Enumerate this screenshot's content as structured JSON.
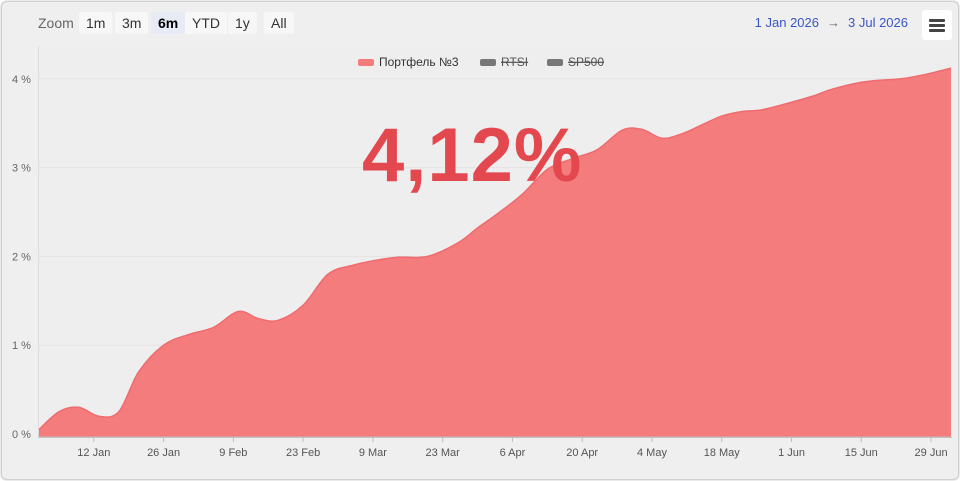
{
  "toolbar": {
    "zoom_label": "Zoom",
    "zoom_buttons": [
      "1m",
      "3m",
      "6m",
      "YTD",
      "1y",
      "All"
    ],
    "active_zoom": "6m",
    "range_from": "1 Jan 2026",
    "range_arrow": "→",
    "range_to": "3 Jul 2026",
    "menu_icon": "hamburger-menu-icon"
  },
  "headline_value": "4,12%",
  "colors": {
    "series": "#f47c7c",
    "series_stroke": "#ef6b6f",
    "headline": "#e4484f",
    "range_link": "#3a55c4"
  },
  "chart_data": {
    "type": "area",
    "title": "",
    "xlabel": "",
    "ylabel": "",
    "ylim": [
      0,
      4.2
    ],
    "yticks": [
      "0 %",
      "1 %",
      "2 %",
      "3 %",
      "4 %"
    ],
    "ytick_values": [
      0,
      1,
      2,
      3,
      4
    ],
    "xticks": [
      "12 Jan",
      "26 Jan",
      "9 Feb",
      "23 Feb",
      "9 Mar",
      "23 Mar",
      "6 Apr",
      "20 Apr",
      "4 May",
      "18 May",
      "1 Jun",
      "15 Jun",
      "29 Jun"
    ],
    "xtick_days": [
      11,
      25,
      39,
      53,
      67,
      81,
      95,
      109,
      123,
      137,
      151,
      165,
      179
    ],
    "x_start_day": 0,
    "x_end_day": 183,
    "grid": true,
    "legend_placement": "top-center",
    "legend": [
      {
        "name": "Портфель №3",
        "visible": true
      },
      {
        "name": "RTSI",
        "visible": false
      },
      {
        "name": "SP500",
        "visible": false
      }
    ],
    "series": [
      {
        "name": "Портфель №3",
        "x_days": [
          0,
          4,
          8,
          12,
          16,
          20,
          25,
          30,
          35,
          40,
          44,
          48,
          53,
          58,
          63,
          67,
          72,
          78,
          84,
          88,
          92,
          97,
          102,
          107,
          112,
          117,
          121,
          125,
          129,
          133,
          137,
          141,
          145,
          150,
          155,
          159,
          164,
          168,
          173,
          178,
          183
        ],
        "values": [
          0.05,
          0.25,
          0.3,
          0.2,
          0.25,
          0.7,
          1.0,
          1.12,
          1.2,
          1.38,
          1.3,
          1.28,
          1.45,
          1.8,
          1.9,
          1.95,
          1.99,
          2.0,
          2.15,
          2.32,
          2.48,
          2.7,
          2.98,
          3.1,
          3.2,
          3.42,
          3.43,
          3.33,
          3.38,
          3.48,
          3.58,
          3.63,
          3.65,
          3.72,
          3.8,
          3.88,
          3.95,
          3.98,
          4.0,
          4.05,
          4.12
        ]
      }
    ]
  }
}
